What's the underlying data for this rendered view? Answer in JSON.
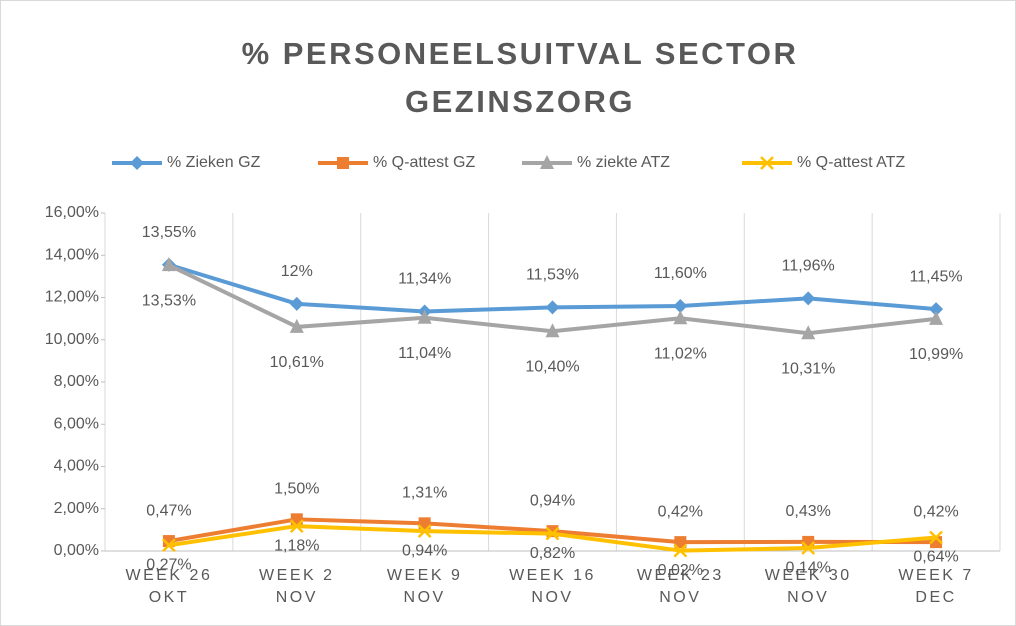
{
  "chart_data": {
    "type": "line",
    "title": "% PERSONEELSUITVAL SECTOR GEZINSZORG",
    "categories": [
      "WEEK 26 OKT",
      "WEEK 2 NOV",
      "WEEK 9 NOV",
      "WEEK 16 NOV",
      "WEEK 23 NOV",
      "WEEK 30 NOV",
      "WEEK 7 DEC"
    ],
    "series": [
      {
        "name": "% Zieken GZ",
        "color": "#5b9bd5",
        "marker": "diamond",
        "values": [
          13.55,
          11.7,
          11.34,
          11.53,
          11.6,
          11.96,
          11.45
        ],
        "value_labels": [
          "13,55%",
          "12%",
          "11,34%",
          "11,53%",
          "11,60%",
          "11,96%",
          "11,45%"
        ]
      },
      {
        "name": "% Q-attest GZ",
        "color": "#ed7d31",
        "marker": "square",
        "values": [
          0.47,
          1.5,
          1.31,
          0.94,
          0.42,
          0.43,
          0.42
        ],
        "value_labels": [
          "0,47%",
          "1,50%",
          "1,31%",
          "0,94%",
          "0,42%",
          "0,43%",
          "0,42%"
        ]
      },
      {
        "name": "% ziekte ATZ",
        "color": "#a5a5a5",
        "marker": "triangle",
        "values": [
          13.53,
          10.61,
          11.04,
          10.4,
          11.02,
          10.31,
          10.99
        ],
        "value_labels": [
          "13,53%",
          "10,61%",
          "11,04%",
          "10,40%",
          "11,02%",
          "10,31%",
          "10,99%"
        ]
      },
      {
        "name": "% Q-attest ATZ",
        "color": "#ffc000",
        "marker": "x",
        "values": [
          0.27,
          1.18,
          0.94,
          0.82,
          0.02,
          0.14,
          0.64
        ],
        "value_labels": [
          "0,27%",
          "1,18%",
          "0,94%",
          "0,82%",
          "0,02%",
          "0,14%",
          "0,64%"
        ]
      }
    ],
    "ylim": [
      0,
      16
    ],
    "yticks": [
      {
        "value": 0,
        "label": "0,00%"
      },
      {
        "value": 2,
        "label": "2,00%"
      },
      {
        "value": 4,
        "label": "4,00%"
      },
      {
        "value": 6,
        "label": "6,00%"
      },
      {
        "value": 8,
        "label": "8,00%"
      },
      {
        "value": 10,
        "label": "10,00%"
      },
      {
        "value": 12,
        "label": "12,00%"
      },
      {
        "value": 14,
        "label": "14,00%"
      },
      {
        "value": 16,
        "label": "16,00%"
      }
    ],
    "legend": "top"
  }
}
